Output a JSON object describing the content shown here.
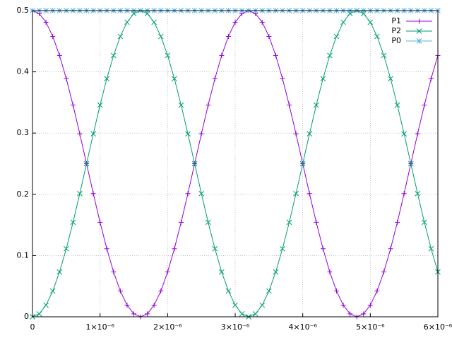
{
  "chart_data": {
    "type": "line",
    "x": [
      0,
      1e-07,
      2e-07,
      3e-07,
      4e-07,
      5e-07,
      6e-07,
      7e-07,
      8e-07,
      9e-07,
      1e-06,
      1.1e-06,
      1.2e-06,
      1.3e-06,
      1.4e-06,
      1.5e-06,
      1.6e-06,
      1.7e-06,
      1.8e-06,
      1.9e-06,
      2e-06,
      2.1e-06,
      2.2e-06,
      2.3e-06,
      2.4e-06,
      2.5e-06,
      2.6e-06,
      2.7e-06,
      2.8e-06,
      2.9e-06,
      3e-06,
      3.1e-06,
      3.2e-06,
      3.3e-06,
      3.4e-06,
      3.5e-06,
      3.6e-06,
      3.7e-06,
      3.8e-06,
      3.9e-06,
      4e-06,
      4.1e-06,
      4.2e-06,
      4.3e-06,
      4.4e-06,
      4.5e-06,
      4.6e-06,
      4.7e-06,
      4.8e-06,
      4.9e-06,
      5e-06,
      5.1e-06,
      5.2e-06,
      5.3e-06,
      5.4e-06,
      5.5e-06,
      5.6e-06,
      5.7e-06,
      5.8e-06,
      5.9e-06,
      6e-06
    ],
    "series": [
      {
        "name": "P1",
        "color": "#9400d3",
        "marker": "plus",
        "values": [
          0.5,
          0.4952,
          0.481,
          0.4579,
          0.4268,
          0.3889,
          0.3457,
          0.2988,
          0.25,
          0.2012,
          0.1543,
          0.1111,
          0.0732,
          0.0421,
          0.019,
          0.0048,
          0,
          0.0048,
          0.019,
          0.0421,
          0.0732,
          0.1111,
          0.1543,
          0.2012,
          0.25,
          0.2988,
          0.3457,
          0.3889,
          0.4268,
          0.4579,
          0.481,
          0.4952,
          0.5,
          0.4952,
          0.481,
          0.4579,
          0.4268,
          0.3889,
          0.3457,
          0.2988,
          0.25,
          0.2012,
          0.1543,
          0.1111,
          0.0732,
          0.0421,
          0.019,
          0.0048,
          0,
          0.0048,
          0.019,
          0.0421,
          0.0732,
          0.1111,
          0.1543,
          0.2012,
          0.25,
          0.2988,
          0.3457,
          0.3889,
          0.4268
        ]
      },
      {
        "name": "P2",
        "color": "#009e73",
        "marker": "cross",
        "values": [
          0,
          0.0048,
          0.019,
          0.0421,
          0.0732,
          0.1111,
          0.1543,
          0.2012,
          0.25,
          0.2988,
          0.3457,
          0.3889,
          0.4268,
          0.4579,
          0.481,
          0.4952,
          0.5,
          0.4952,
          0.481,
          0.4579,
          0.4268,
          0.3889,
          0.3457,
          0.2988,
          0.25,
          0.2012,
          0.1543,
          0.1111,
          0.0732,
          0.0421,
          0.019,
          0.0048,
          0,
          0.0048,
          0.019,
          0.0421,
          0.0732,
          0.1111,
          0.1543,
          0.2012,
          0.25,
          0.2988,
          0.3457,
          0.3889,
          0.4268,
          0.4579,
          0.481,
          0.4952,
          0.5,
          0.4952,
          0.481,
          0.4579,
          0.4268,
          0.3889,
          0.3457,
          0.2988,
          0.25,
          0.2012,
          0.1543,
          0.1111,
          0.0732
        ]
      },
      {
        "name": "P0",
        "color": "#56b4e9",
        "marker": "star",
        "values": [
          0.5,
          0.5,
          0.5,
          0.5,
          0.5,
          0.5,
          0.5,
          0.5,
          0.5,
          0.5,
          0.5,
          0.5,
          0.5,
          0.5,
          0.5,
          0.5,
          0.5,
          0.5,
          0.5,
          0.5,
          0.5,
          0.5,
          0.5,
          0.5,
          0.5,
          0.5,
          0.5,
          0.5,
          0.5,
          0.5,
          0.5,
          0.5,
          0.5,
          0.5,
          0.5,
          0.5,
          0.5,
          0.5,
          0.5,
          0.5,
          0.5,
          0.5,
          0.5,
          0.5,
          0.5,
          0.5,
          0.5,
          0.5,
          0.5,
          0.5,
          0.5,
          0.5,
          0.5,
          0.5,
          0.5,
          0.5,
          0.5,
          0.5,
          0.5,
          0.5,
          0.5
        ]
      }
    ],
    "xlim": [
      0,
      6e-06
    ],
    "xticks": [
      0,
      {
        "value": 1e-06,
        "label": "1×10⁻⁶"
      },
      {
        "value": 2e-06,
        "label": "2×10⁻⁶"
      },
      {
        "value": 3e-06,
        "label": "3×10⁻⁶"
      },
      {
        "value": 4e-06,
        "label": "4×10⁻⁶"
      },
      {
        "value": 5e-06,
        "label": "5×10⁻⁶"
      },
      {
        "value": 6e-06,
        "label": "6×10⁻⁶"
      }
    ],
    "ylim": [
      0,
      0.5
    ],
    "yticks": [
      0,
      0.1,
      0.2,
      0.3,
      0.4,
      0.5
    ],
    "grid": true,
    "legend": "top-right"
  }
}
